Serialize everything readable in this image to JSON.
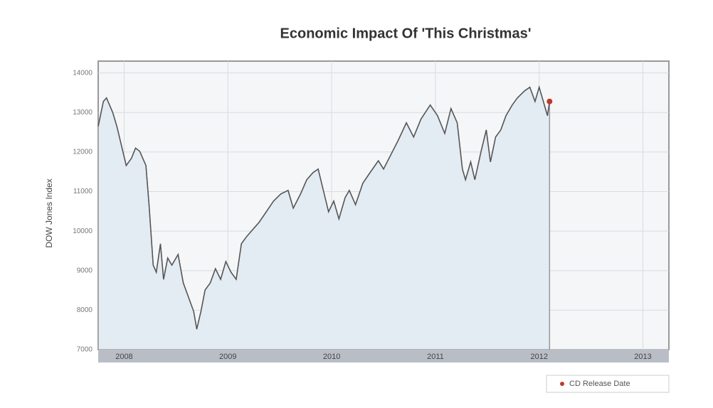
{
  "chart_data": {
    "type": "line",
    "title": "Economic Impact Of 'This Christmas'",
    "y_label": "DOW Jones Index",
    "xlim": [
      2007.75,
      2013.25
    ],
    "xticks": [
      2008,
      2009,
      2010,
      2011,
      2012,
      2013
    ],
    "ylim": [
      7000,
      14300
    ],
    "yticks": [
      7000,
      8000,
      9000,
      10000,
      11000,
      12000,
      13000,
      14000
    ],
    "grid": true,
    "legend": "bottom-right",
    "series": [
      {
        "color": "#555555",
        "fill": "#e3ebf3",
        "x": [
          2007.75,
          2007.8,
          2007.83,
          2007.89,
          2007.93,
          2007.98,
          2008.02,
          2008.07,
          2008.11,
          2008.15,
          2008.21,
          2008.24,
          2008.28,
          2008.31,
          2008.35,
          2008.38,
          2008.42,
          2008.46,
          2008.52,
          2008.57,
          2008.62,
          2008.67,
          2008.7,
          2008.74,
          2008.78,
          2008.83,
          2008.88,
          2008.93,
          2008.98,
          2009.03,
          2009.08,
          2009.13,
          2009.18,
          2009.24,
          2009.3,
          2009.37,
          2009.44,
          2009.51,
          2009.58,
          2009.63,
          2009.7,
          2009.76,
          2009.82,
          2009.87,
          2009.92,
          2009.97,
          2010.02,
          2010.07,
          2010.13,
          2010.17,
          2010.23,
          2010.3,
          2010.37,
          2010.45,
          2010.5,
          2010.57,
          2010.64,
          2010.72,
          2010.79,
          2010.86,
          2010.95,
          2011.02,
          2011.09,
          2011.15,
          2011.21,
          2011.26,
          2011.29,
          2011.34,
          2011.38,
          2011.44,
          2011.49,
          2011.53,
          2011.58,
          2011.63,
          2011.68,
          2011.74,
          2011.79,
          2011.86,
          2011.91,
          2011.96,
          2012.0,
          2012.05,
          2012.08,
          2012.1
        ],
        "values": [
          12650,
          13280,
          13370,
          13000,
          12650,
          12100,
          11660,
          11840,
          12100,
          12020,
          11660,
          10670,
          9140,
          8960,
          9680,
          8780,
          9320,
          9140,
          9410,
          8690,
          8330,
          7970,
          7520,
          7970,
          8510,
          8690,
          9050,
          8780,
          9230,
          8960,
          8780,
          9680,
          9860,
          10040,
          10220,
          10490,
          10760,
          10940,
          11030,
          10580,
          10940,
          11300,
          11480,
          11570,
          11030,
          10490,
          10760,
          10310,
          10850,
          11030,
          10670,
          11210,
          11480,
          11780,
          11570,
          11930,
          12290,
          12740,
          12380,
          12830,
          13190,
          12920,
          12470,
          13100,
          12740,
          11570,
          11300,
          11750,
          11300,
          12020,
          12560,
          11750,
          12380,
          12560,
          12920,
          13190,
          13370,
          13550,
          13640,
          13280,
          13640,
          13190,
          12920,
          13280
        ]
      },
      {
        "name": "CD Release Date",
        "type": "scatter",
        "color": "#c0392b",
        "x": [
          2012.1
        ],
        "values": [
          13280
        ]
      }
    ]
  }
}
